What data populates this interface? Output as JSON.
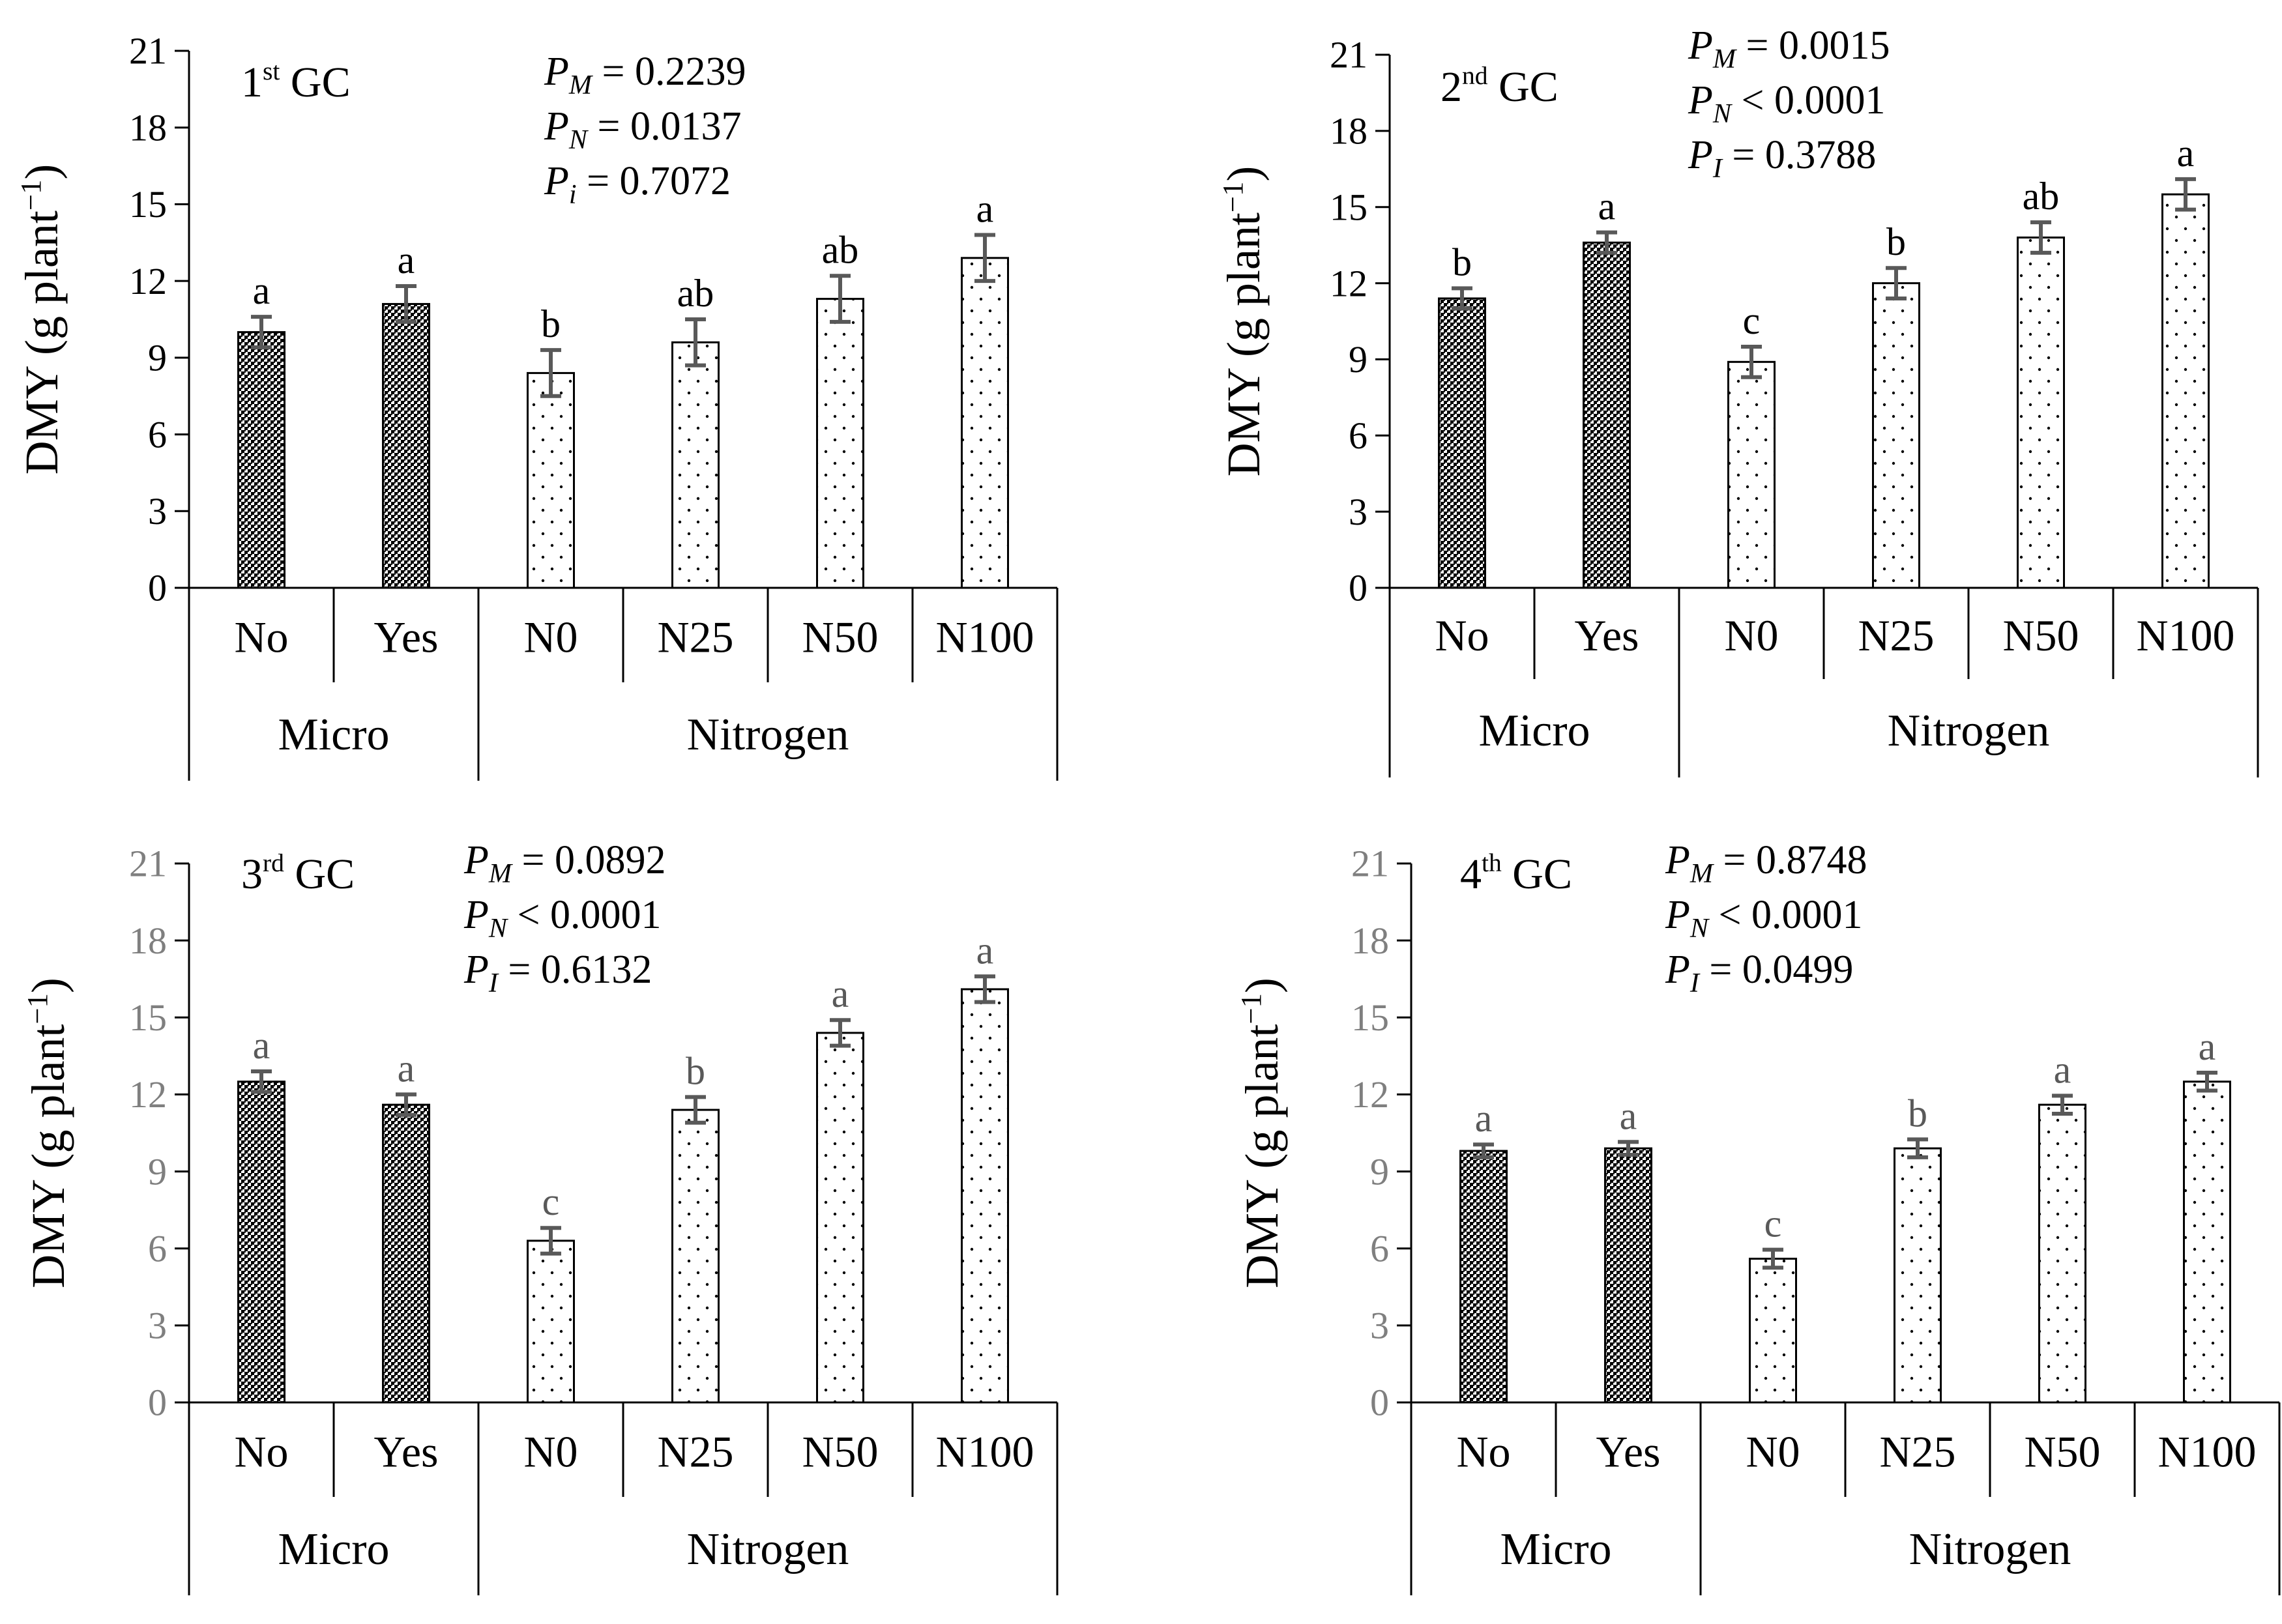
{
  "chart_data": [
    {
      "type": "bar",
      "panel": "top-left",
      "title": "1",
      "title_sup": "st",
      "title_suffix": " GC",
      "ylabel": "DMY (g plant",
      "ylabel_sup": "−1",
      "ylabel_close": ")",
      "ylim": [
        0,
        21
      ],
      "yticks": [
        "0",
        "3",
        "6",
        "9",
        "12",
        "15",
        "18",
        "21"
      ],
      "tick_color": "black",
      "groups": [
        {
          "label": "Micro",
          "categories": [
            "No",
            "Yes"
          ]
        },
        {
          "label": "Nitrogen",
          "categories": [
            "N0",
            "N25",
            "N50",
            "N100"
          ]
        }
      ],
      "bars": [
        {
          "category": "No",
          "value": 10.0,
          "error": 0.6,
          "letter": "a",
          "pattern": "dense"
        },
        {
          "category": "Yes",
          "value": 11.1,
          "error": 0.7,
          "letter": "a",
          "pattern": "dense"
        },
        {
          "category": "N0",
          "value": 8.4,
          "error": 0.9,
          "letter": "b",
          "pattern": "sparse"
        },
        {
          "category": "N25",
          "value": 9.6,
          "error": 0.9,
          "letter": "ab",
          "pattern": "sparse"
        },
        {
          "category": "N50",
          "value": 11.3,
          "error": 0.9,
          "letter": "ab",
          "pattern": "sparse"
        },
        {
          "category": "N100",
          "value": 12.9,
          "error": 0.9,
          "letter": "a",
          "pattern": "sparse"
        }
      ],
      "stats": [
        {
          "sub": "M",
          "op": "=",
          "value": "0.2239"
        },
        {
          "sub": "N",
          "op": "=",
          "value": "0.0137"
        },
        {
          "sub": "i",
          "op": "=",
          "value": "0.7072"
        }
      ]
    },
    {
      "type": "bar",
      "panel": "top-right",
      "title": "2",
      "title_sup": "nd",
      "title_suffix": " GC",
      "ylabel": "DMY (g plant",
      "ylabel_sup": "−1",
      "ylabel_close": ")",
      "ylim": [
        0,
        21
      ],
      "yticks": [
        "0",
        "3",
        "6",
        "9",
        "12",
        "15",
        "18",
        "21"
      ],
      "tick_color": "black",
      "groups": [
        {
          "label": "Micro",
          "categories": [
            "No",
            "Yes"
          ]
        },
        {
          "label": "Nitrogen",
          "categories": [
            "N0",
            "N25",
            "N50",
            "N100"
          ]
        }
      ],
      "bars": [
        {
          "category": "No",
          "value": 11.4,
          "error": 0.4,
          "letter": "b",
          "pattern": "dense"
        },
        {
          "category": "Yes",
          "value": 13.6,
          "error": 0.4,
          "letter": "a",
          "pattern": "dense"
        },
        {
          "category": "N0",
          "value": 8.9,
          "error": 0.6,
          "letter": "c",
          "pattern": "sparse"
        },
        {
          "category": "N25",
          "value": 12.0,
          "error": 0.6,
          "letter": "b",
          "pattern": "sparse"
        },
        {
          "category": "N50",
          "value": 13.8,
          "error": 0.6,
          "letter": "ab",
          "pattern": "sparse"
        },
        {
          "category": "N100",
          "value": 15.5,
          "error": 0.6,
          "letter": "a",
          "pattern": "sparse"
        }
      ],
      "stats": [
        {
          "sub": "M",
          "op": "=",
          "value": "0.0015"
        },
        {
          "sub": "N",
          "op": "<",
          "value": "0.0001"
        },
        {
          "sub": "I",
          "op": "=",
          "value": "0.3788"
        }
      ]
    },
    {
      "type": "bar",
      "panel": "bottom-left",
      "title": "3",
      "title_sup": "rd",
      "title_suffix": " GC",
      "ylabel": "DMY (g plant",
      "ylabel_sup": "−1",
      "ylabel_close": ")",
      "ylim": [
        0,
        21
      ],
      "yticks": [
        "0",
        "3",
        "6",
        "9",
        "12",
        "15",
        "18",
        "21"
      ],
      "tick_color": "gray",
      "groups": [
        {
          "label": "Micro",
          "categories": [
            "No",
            "Yes"
          ]
        },
        {
          "label": "Nitrogen",
          "categories": [
            "N0",
            "N25",
            "N50",
            "N100"
          ]
        }
      ],
      "bars": [
        {
          "category": "No",
          "value": 12.5,
          "error": 0.4,
          "letter": "a",
          "pattern": "dense"
        },
        {
          "category": "Yes",
          "value": 11.6,
          "error": 0.4,
          "letter": "a",
          "pattern": "dense"
        },
        {
          "category": "N0",
          "value": 6.3,
          "error": 0.5,
          "letter": "c",
          "pattern": "sparse"
        },
        {
          "category": "N25",
          "value": 11.4,
          "error": 0.5,
          "letter": "b",
          "pattern": "sparse"
        },
        {
          "category": "N50",
          "value": 14.4,
          "error": 0.5,
          "letter": "a",
          "pattern": "sparse"
        },
        {
          "category": "N100",
          "value": 16.1,
          "error": 0.5,
          "letter": "a",
          "pattern": "sparse"
        }
      ],
      "stats": [
        {
          "sub": "M",
          "op": "=",
          "value": "0.0892"
        },
        {
          "sub": "N",
          "op": "<",
          "value": "0.0001"
        },
        {
          "sub": "I",
          "op": "=",
          "value": "0.6132"
        }
      ]
    },
    {
      "type": "bar",
      "panel": "bottom-right",
      "title": "4",
      "title_sup": "th",
      "title_suffix": " GC",
      "ylabel": "DMY (g plant",
      "ylabel_sup": "−1",
      "ylabel_close": ")",
      "ylim": [
        0,
        21
      ],
      "yticks": [
        "0",
        "3",
        "6",
        "9",
        "12",
        "15",
        "18",
        "21"
      ],
      "tick_color": "gray",
      "groups": [
        {
          "label": "Micro",
          "categories": [
            "No",
            "Yes"
          ]
        },
        {
          "label": "Nitrogen",
          "categories": [
            "N0",
            "N25",
            "N50",
            "N100"
          ]
        }
      ],
      "bars": [
        {
          "category": "No",
          "value": 9.8,
          "error": 0.25,
          "letter": "a",
          "pattern": "dense"
        },
        {
          "category": "Yes",
          "value": 9.9,
          "error": 0.25,
          "letter": "a",
          "pattern": "dense"
        },
        {
          "category": "N0",
          "value": 5.6,
          "error": 0.35,
          "letter": "c",
          "pattern": "sparse"
        },
        {
          "category": "N25",
          "value": 9.9,
          "error": 0.35,
          "letter": "b",
          "pattern": "sparse"
        },
        {
          "category": "N50",
          "value": 11.6,
          "error": 0.35,
          "letter": "a",
          "pattern": "sparse"
        },
        {
          "category": "N100",
          "value": 12.5,
          "error": 0.35,
          "letter": "a",
          "pattern": "sparse"
        }
      ],
      "stats": [
        {
          "sub": "M",
          "op": "=",
          "value": "0.8748"
        },
        {
          "sub": "N",
          "op": "<",
          "value": "0.0001"
        },
        {
          "sub": "I",
          "op": "=",
          "value": "0.0499"
        }
      ]
    }
  ]
}
